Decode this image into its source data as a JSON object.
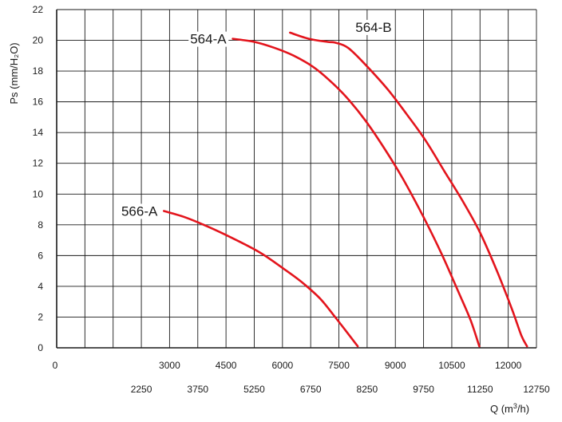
{
  "chart_data": {
    "type": "line",
    "title": "",
    "xlabel_parts": {
      "base": "Q (m",
      "sup": "3",
      "tail": "/h)"
    },
    "ylabel": "Ps (mm/H₂O)",
    "xlim": [
      0,
      12750
    ],
    "ylim": [
      0,
      22
    ],
    "grid": true,
    "x_ticks_upper": [
      "0",
      "3000",
      "4500",
      "6000",
      "7500",
      "9000",
      "10500",
      "12000"
    ],
    "x_ticks_lower": [
      "2250",
      "3750",
      "5250",
      "6750",
      "8250",
      "9750",
      "11250",
      "12750"
    ],
    "y_ticks": [
      "0",
      "2",
      "4",
      "6",
      "8",
      "10",
      "12",
      "14",
      "16",
      "18",
      "20",
      "22"
    ],
    "line_color": "#e3141c",
    "series": [
      {
        "name": "564-A",
        "x": [
          4680,
          5250,
          5800,
          6300,
          6800,
          7250,
          7700,
          8200,
          8700,
          9200,
          9750,
          10250,
          10700,
          11000,
          11230
        ],
        "y": [
          20.1,
          19.9,
          19.5,
          19.0,
          18.3,
          17.4,
          16.3,
          14.8,
          13.0,
          11.0,
          8.5,
          6.0,
          3.5,
          1.8,
          0.1
        ]
      },
      {
        "name": "564-B",
        "x": [
          6200,
          6700,
          7200,
          7400,
          7750,
          8250,
          8800,
          9300,
          9800,
          10300,
          10800,
          11250,
          11700,
          12100,
          12350,
          12500
        ],
        "y": [
          20.5,
          20.1,
          19.9,
          19.85,
          19.5,
          18.3,
          16.8,
          15.2,
          13.5,
          11.5,
          9.5,
          7.5,
          5.0,
          2.5,
          0.8,
          0.1
        ]
      },
      {
        "name": "566-A",
        "x": [
          2850,
          3400,
          4000,
          4700,
          5400,
          6000,
          6500,
          7000,
          7400,
          7750,
          8000
        ],
        "y": [
          8.9,
          8.5,
          7.9,
          7.1,
          6.2,
          5.2,
          4.3,
          3.2,
          2.0,
          0.9,
          0.1
        ]
      }
    ]
  }
}
